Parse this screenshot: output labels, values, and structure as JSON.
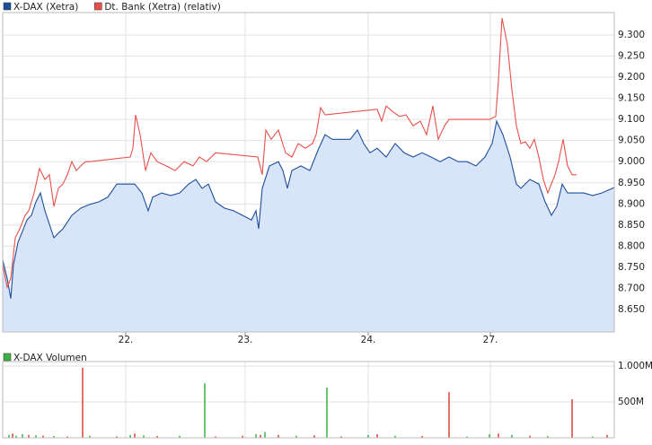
{
  "chart_data": [
    {
      "type": "line",
      "xlim": [
        0,
        681
      ],
      "xticks": [
        {
          "value": 137,
          "label": "22."
        },
        {
          "value": 270,
          "label": "23."
        },
        {
          "value": 407,
          "label": "24."
        },
        {
          "value": 543,
          "label": "27."
        }
      ],
      "ylim": [
        8.597,
        9.353
      ],
      "yticks": [
        {
          "value": 8.65,
          "label": "8.650"
        },
        {
          "value": 8.7,
          "label": "8.700"
        },
        {
          "value": 8.75,
          "label": "8.750"
        },
        {
          "value": 8.8,
          "label": "8.800"
        },
        {
          "value": 8.85,
          "label": "8.850"
        },
        {
          "value": 8.9,
          "label": "8.900"
        },
        {
          "value": 8.95,
          "label": "8.950"
        },
        {
          "value": 9.0,
          "label": "9.000"
        },
        {
          "value": 9.05,
          "label": "9.050"
        },
        {
          "value": 9.1,
          "label": "9.100"
        },
        {
          "value": 9.15,
          "label": "9.150"
        },
        {
          "value": 9.2,
          "label": "9.200"
        },
        {
          "value": 9.25,
          "label": "9.250"
        },
        {
          "value": 9.3,
          "label": "9.300"
        }
      ],
      "grid": true,
      "series": [
        {
          "name": "X-DAX (Xetra)",
          "color": "#1f4e9c",
          "area_color": "#d8e5f8",
          "x": [
            0,
            5,
            9,
            12,
            17,
            22,
            27,
            32,
            37,
            42,
            47,
            52,
            57,
            62,
            67,
            77,
            87,
            97,
            107,
            117,
            127,
            137,
            147,
            155,
            162,
            167,
            177,
            187,
            197,
            207,
            215,
            222,
            229,
            237,
            247,
            257,
            267,
            277,
            282,
            285,
            289,
            297,
            307,
            312,
            317,
            322,
            332,
            342,
            352,
            359,
            367,
            377,
            387,
            395,
            402,
            409,
            417,
            427,
            437,
            447,
            457,
            467,
            477,
            487,
            497,
            507,
            517,
            527,
            537,
            545,
            550,
            557,
            565,
            572,
            577,
            587,
            597,
            604,
            611,
            617,
            623,
            629,
            637,
            647,
            657,
            667,
            681
          ],
          "values": [
            8.767,
            8.724,
            8.676,
            8.756,
            8.809,
            8.835,
            8.862,
            8.873,
            8.905,
            8.926,
            8.884,
            8.852,
            8.82,
            8.831,
            8.841,
            8.873,
            8.89,
            8.899,
            8.905,
            8.916,
            8.947,
            8.947,
            8.947,
            8.926,
            8.884,
            8.916,
            8.926,
            8.92,
            8.926,
            8.947,
            8.958,
            8.937,
            8.947,
            8.905,
            8.89,
            8.884,
            8.873,
            8.862,
            8.884,
            8.841,
            8.937,
            8.99,
            9.0,
            8.979,
            8.937,
            8.979,
            8.99,
            8.979,
            9.032,
            9.064,
            9.053,
            9.053,
            9.053,
            9.075,
            9.043,
            9.021,
            9.032,
            9.011,
            9.043,
            9.021,
            9.011,
            9.021,
            9.011,
            9.0,
            9.011,
            9.0,
            9.0,
            8.99,
            9.011,
            9.043,
            9.096,
            9.064,
            9.011,
            8.947,
            8.937,
            8.958,
            8.947,
            8.905,
            8.873,
            8.894,
            8.947,
            8.926,
            8.926,
            8.926,
            8.92,
            8.926,
            8.939
          ]
        },
        {
          "name": "Dt. Bank (Xetra) (relativ)",
          "color": "#e8504a",
          "x": [
            0,
            5,
            9,
            14,
            19,
            25,
            29,
            35,
            41,
            47,
            52,
            57,
            62,
            67,
            72,
            77,
            82,
            87,
            92,
            97,
            142,
            145,
            148,
            153,
            159,
            165,
            172,
            182,
            192,
            202,
            212,
            219,
            227,
            237,
            284,
            289,
            293,
            299,
            307,
            315,
            322,
            329,
            337,
            345,
            349,
            354,
            359,
            417,
            422,
            427,
            435,
            442,
            449,
            457,
            465,
            472,
            479,
            485,
            492,
            497,
            542,
            549,
            552,
            556,
            562,
            567,
            572,
            577,
            582,
            587,
            592,
            597,
            602,
            607,
            615,
            619,
            624,
            629,
            634,
            639
          ],
          "values": [
            8.756,
            8.703,
            8.724,
            8.82,
            8.841,
            8.873,
            8.884,
            8.926,
            8.984,
            8.958,
            8.969,
            8.894,
            8.937,
            8.947,
            8.969,
            9.0,
            8.979,
            8.99,
            9.0,
            9.0,
            9.011,
            9.032,
            9.111,
            9.064,
            8.979,
            9.021,
            9.0,
            8.99,
            8.979,
            9.0,
            8.99,
            9.011,
            9.0,
            9.021,
            9.011,
            8.969,
            9.075,
            9.053,
            9.075,
            9.021,
            9.011,
            9.043,
            9.032,
            9.043,
            9.064,
            9.128,
            9.111,
            9.124,
            9.096,
            9.132,
            9.117,
            9.107,
            9.111,
            9.085,
            9.096,
            9.064,
            9.132,
            9.053,
            9.085,
            9.1,
            9.1,
            9.107,
            9.192,
            9.34,
            9.277,
            9.17,
            9.085,
            9.043,
            9.047,
            9.032,
            9.053,
            9.011,
            8.958,
            8.926,
            8.969,
            9.0,
            9.053,
            8.99,
            8.969,
            8.969
          ]
        }
      ]
    },
    {
      "type": "bar",
      "xlim": [
        0,
        681
      ],
      "ylim": [
        0,
        1062500
      ],
      "yticks": [
        {
          "value": 500000,
          "label": "500M"
        },
        {
          "value": 1000000,
          "label": "1.000M"
        }
      ],
      "series": [
        {
          "name": "X-DAX Volumen",
          "color": "#3cb043",
          "x": [
            7,
            11,
            15,
            22,
            29,
            37,
            45,
            57,
            72,
            89,
            97,
            127,
            142,
            147,
            157,
            172,
            197,
            225,
            237,
            267,
            282,
            287,
            292,
            307,
            327,
            347,
            361,
            377,
            407,
            417,
            437,
            467,
            497,
            517,
            542,
            552,
            567,
            587,
            607,
            634,
            657,
            673
          ],
          "values": [
            40000,
            60000,
            30000,
            50000,
            40000,
            35000,
            30000,
            25000,
            20000,
            975000,
            30000,
            20000,
            40000,
            60000,
            35000,
            25000,
            30000,
            760000,
            20000,
            30000,
            50000,
            40000,
            80000,
            40000,
            30000,
            35000,
            700000,
            20000,
            40000,
            50000,
            30000,
            25000,
            637000,
            20000,
            50000,
            60000,
            40000,
            30000,
            25000,
            537000,
            20000,
            40000
          ],
          "colors": [
            "#3cb043",
            "#d9423c",
            "#3cb043",
            "#3cb043",
            "#d9423c",
            "#3cb043",
            "#d9423c",
            "#3cb043",
            "#d9423c",
            "#d9423c",
            "#3cb043",
            "#d9423c",
            "#3cb043",
            "#d9423c",
            "#3cb043",
            "#d9423c",
            "#3cb043",
            "#3cb043",
            "#d9423c",
            "#d9423c",
            "#3cb043",
            "#d9423c",
            "#3cb043",
            "#d9423c",
            "#3cb043",
            "#d9423c",
            "#3cb043",
            "#d9423c",
            "#3cb043",
            "#d9423c",
            "#3cb043",
            "#d9423c",
            "#d9423c",
            "#3cb043",
            "#3cb043",
            "#d9423c",
            "#3cb043",
            "#d9423c",
            "#3cb043",
            "#d9423c",
            "#3cb043",
            "#d9423c"
          ]
        }
      ]
    }
  ]
}
